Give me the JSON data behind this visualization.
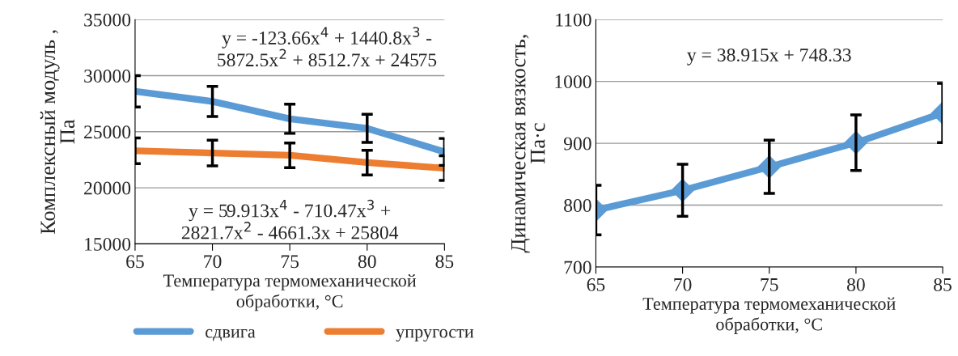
{
  "chart_data": [
    {
      "type": "line",
      "xlabel": "Температура термомеханической\nобработки, °C",
      "ylabel": "Комплексный модуль ,\nПа",
      "x": [
        65,
        70,
        75,
        80,
        85
      ],
      "series": [
        {
          "name": "сдвига",
          "color": "#5b9bd5",
          "values": [
            28600,
            27700,
            26150,
            25300,
            23200
          ],
          "errors": [
            1400,
            1350,
            1300,
            1250,
            1200
          ]
        },
        {
          "name": "упругости",
          "color": "#ed7d31",
          "values": [
            23300,
            23100,
            22900,
            22250,
            21750
          ],
          "errors": [
            1150,
            1150,
            1100,
            1100,
            1100
          ]
        }
      ],
      "xlim": [
        65,
        85
      ],
      "xticks": [
        65,
        70,
        75,
        80,
        85
      ],
      "ylim": [
        15000,
        35000
      ],
      "yticks": [
        15000,
        20000,
        25000,
        30000,
        35000
      ],
      "grid": "y",
      "legend": "bottom",
      "marker": "none",
      "annotations": [
        "y = -123.66x$^{4}$ + 1440.8x$^{3}$ -\n5872.5x$^{2}$ + 8512.7x + 24575",
        "y = 59.913x$^{4}$ - 710.47x$^{3}$ +\n2821.7x$^{2}$ - 4661.3x + 25804"
      ]
    },
    {
      "type": "line",
      "xlabel": "Температура термомеханической\nобработки, °C",
      "ylabel": "Динамическая вязкость,\nПа·с",
      "x": [
        65,
        70,
        75,
        80,
        85
      ],
      "series": [
        {
          "color": "#5b9bd5",
          "values": [
            792,
            824,
            862,
            901,
            949
          ],
          "errors": [
            40,
            42,
            43,
            45,
            48
          ]
        }
      ],
      "xlim": [
        65,
        85
      ],
      "xticks": [
        65,
        70,
        75,
        80,
        85
      ],
      "ylim": [
        700,
        1100
      ],
      "yticks": [
        700,
        800,
        900,
        1000,
        1100
      ],
      "grid": "y",
      "marker": "diamond",
      "annotations": [
        "y = 38.915x + 748.33"
      ]
    }
  ]
}
